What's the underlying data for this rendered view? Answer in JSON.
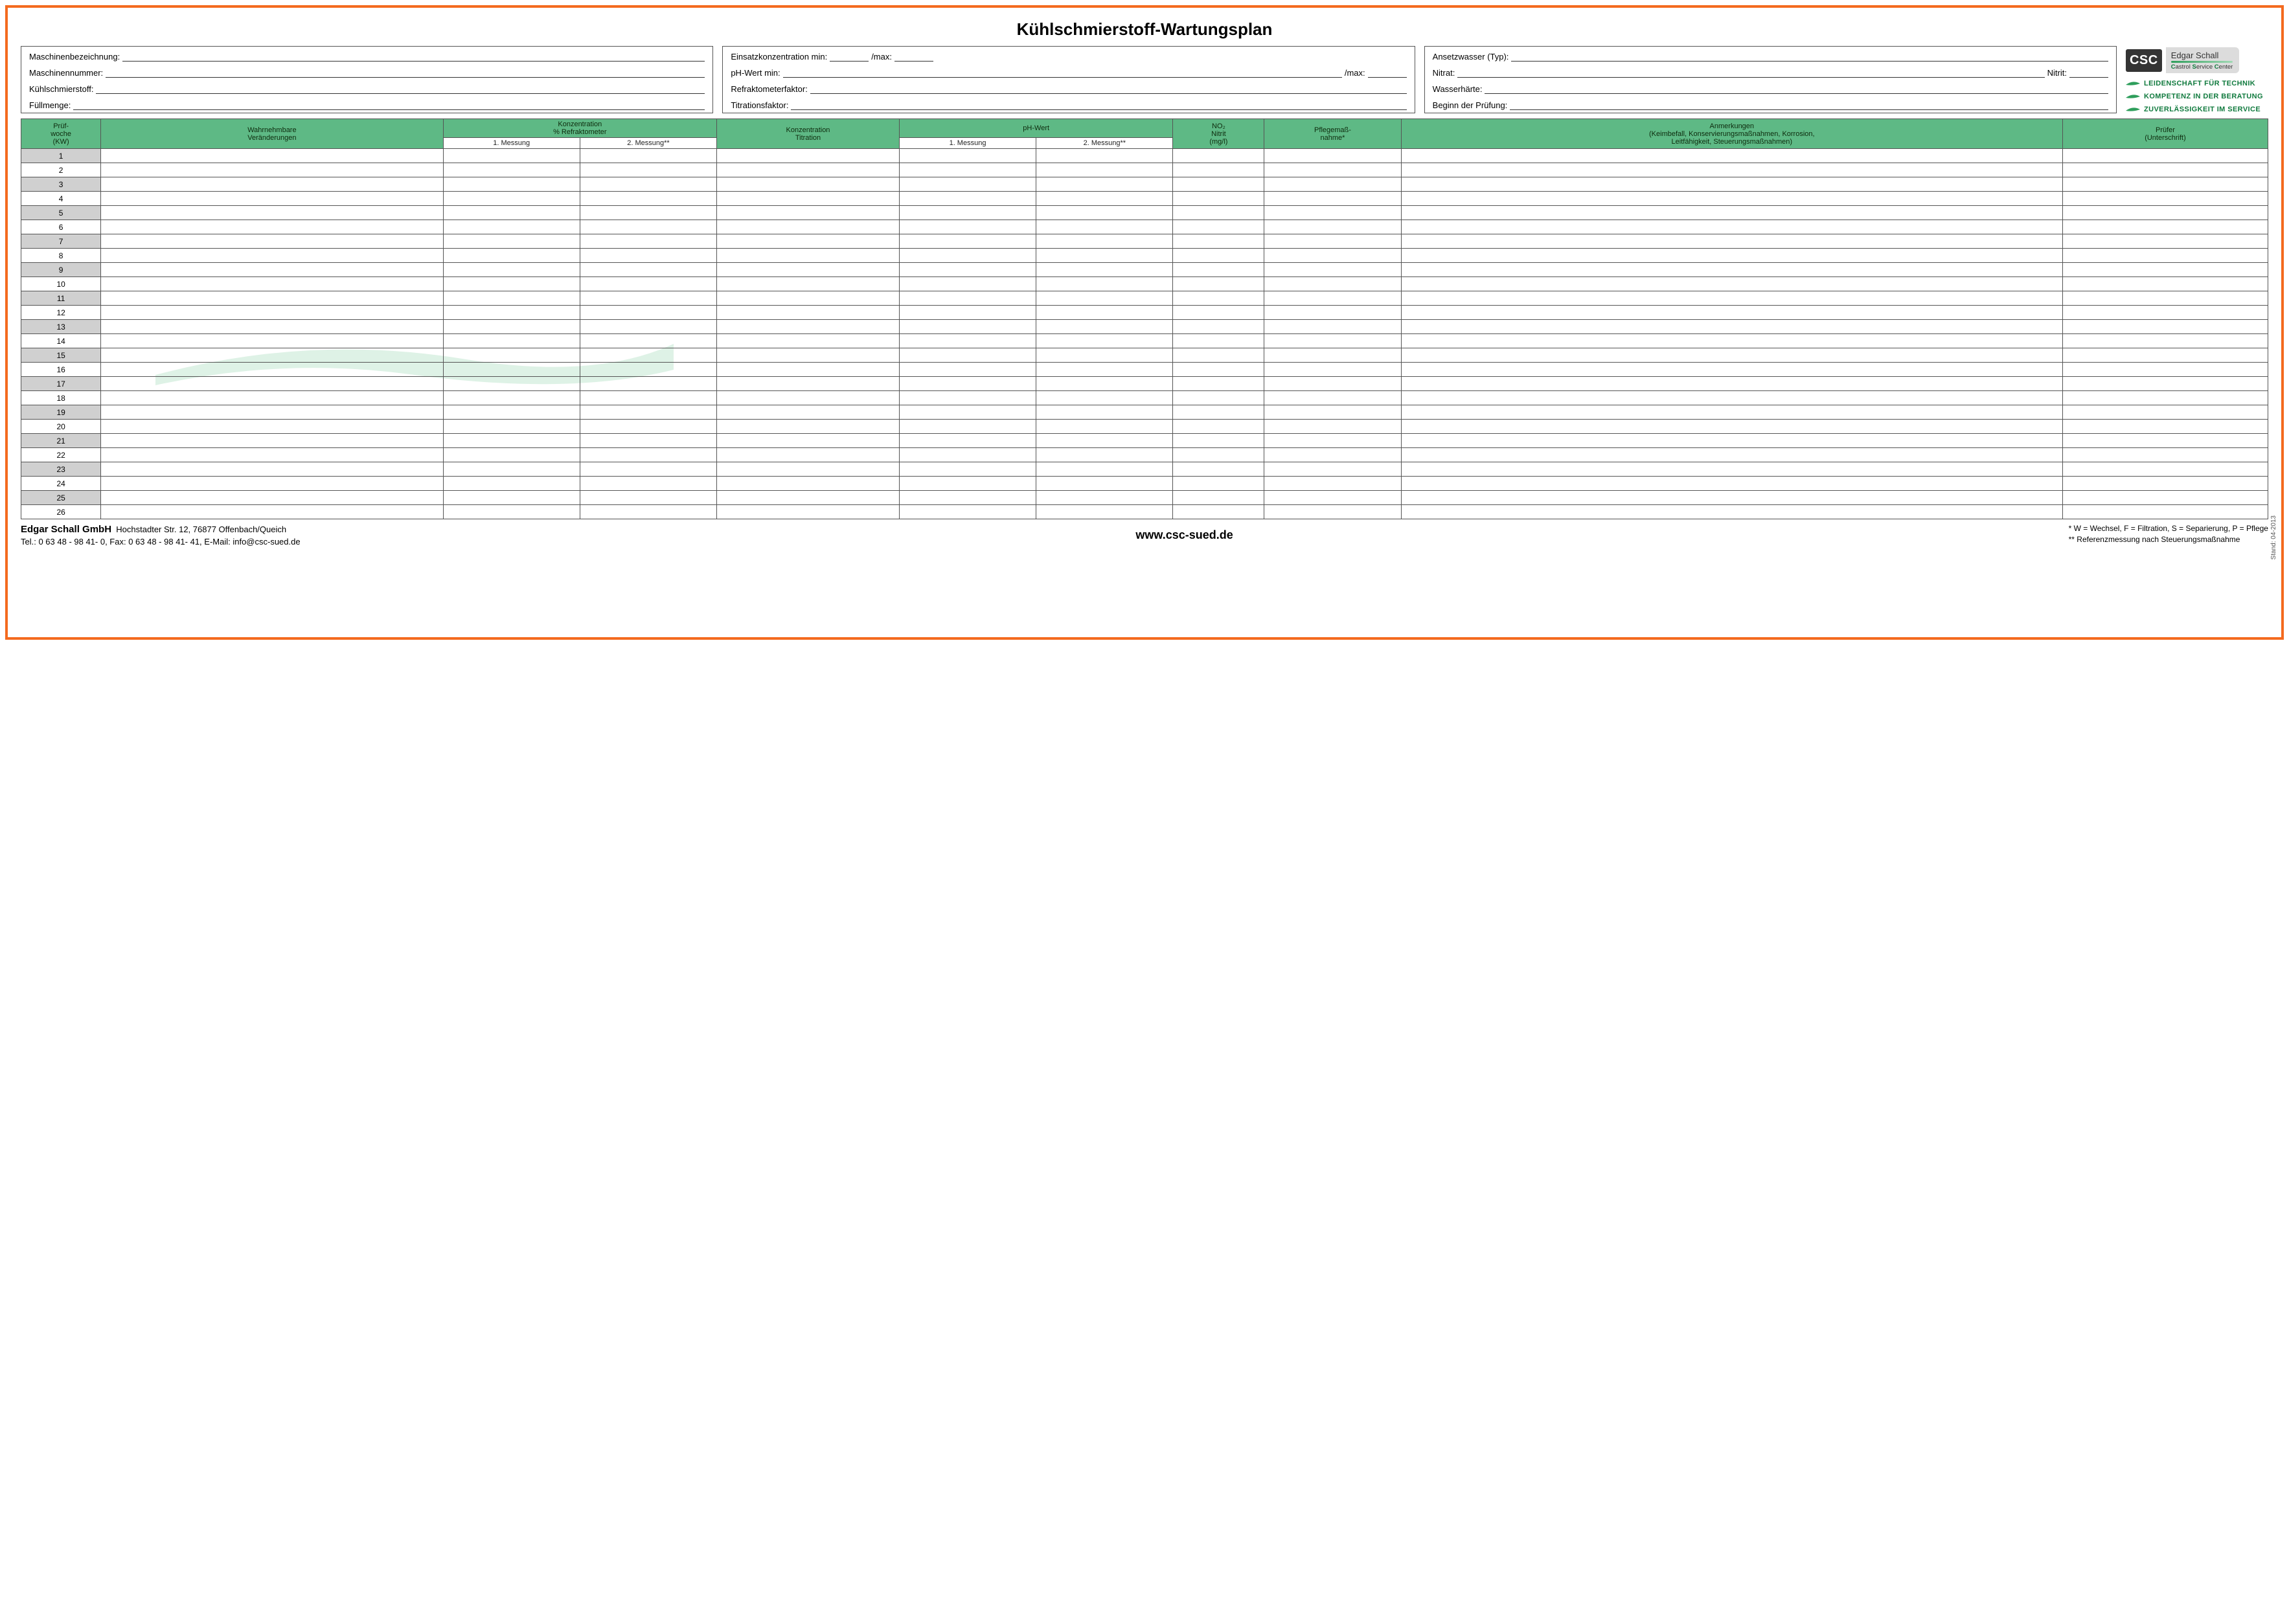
{
  "colors": {
    "frame_border": "#f46a1f",
    "header_bg": "#5eb985",
    "kw_odd_bg": "#d0d0d0",
    "brand_green": "#107a3e",
    "csc_badge_bg": "#343434",
    "grid_border": "#555555"
  },
  "title": "Kühlschmierstoff-Wartungsplan",
  "info": {
    "col1": {
      "maschinenbezeichnung_label": "Maschinenbezeichnung:",
      "maschinennummer_label": "Maschinennummer:",
      "kuehlschmierstoff_label": "Kühlschmierstoff:",
      "fuellmenge_label": "Füllmenge:"
    },
    "col2": {
      "einsatzkonzentration_label": "Einsatzkonzentration min:",
      "max_label": "/max:",
      "ph_wert_min_label": "pH-Wert min:",
      "ph_max_label": "/max:",
      "refraktometerfaktor_label": "Refraktometerfaktor:",
      "titrationsfaktor_label": "Titrationsfaktor:"
    },
    "col3": {
      "ansetzwasser_label": "Ansetzwasser (Typ):",
      "nitrat_label": "Nitrat:",
      "nitrit_label": "Nitrit:",
      "wasserhaerte_label": "Wasserhärte:",
      "beginn_label": "Beginn der Prüfung:"
    }
  },
  "logo": {
    "badge": "CSC",
    "name": "Edgar Schall",
    "sub_pre_c": "C",
    "sub_pre_s": "S",
    "sub_pre_c2": "C",
    "sub_castrol": "astrol ",
    "sub_service": "ervice ",
    "sub_center": "enter",
    "tag1": "LEIDENSCHAFT FÜR TECHNIK",
    "tag2": "KOMPETENZ IN DER BERATUNG",
    "tag3": "ZUVERLÄSSIGKEIT IM SERVICE"
  },
  "table": {
    "type": "form-grid",
    "num_rows": 26,
    "columns": [
      {
        "key": "kw",
        "label": "Prüf-\nwoche\n(KW)",
        "width": "3.5%"
      },
      {
        "key": "change",
        "label": "Wahrnehmbare\nVeränderungen",
        "width": "15%"
      },
      {
        "key": "konz_r1",
        "label": "Konzentration\n% Refraktometer",
        "width": "6%",
        "sublabel": "1. Messung"
      },
      {
        "key": "konz_r2",
        "label": "",
        "width": "6%",
        "sublabel": "2. Messung**"
      },
      {
        "key": "konz_titr",
        "label": "Konzentration\nTitration",
        "width": "8%"
      },
      {
        "key": "ph1",
        "label": "pH-Wert",
        "width": "6%",
        "sublabel": "1. Messung"
      },
      {
        "key": "ph2",
        "label": "",
        "width": "6%",
        "sublabel": "2. Messung**"
      },
      {
        "key": "no2",
        "label": "NO₂\nNitrit\n(mg/l)",
        "width": "4%"
      },
      {
        "key": "pflege",
        "label": "Pflegemaß-\nnahme*",
        "width": "6%"
      },
      {
        "key": "anmerkung",
        "label": "Anmerkungen\n(Keimbefall, Konservierungsmaßnahmen, Korrosion,\nLeitfähigkeit, Steuerungsmaßnahmen)",
        "width": "29%"
      },
      {
        "key": "pruefer",
        "label": "Prüfer\n(Unterschrift)",
        "width": "9%"
      }
    ]
  },
  "footer": {
    "company": "Edgar Schall GmbH",
    "address": "Hochstadter Str. 12, 76877 Offenbach/Queich",
    "contact": "Tel.: 0 63 48 - 98 41- 0, Fax: 0 63 48 - 98 41- 41, E-Mail: info@csc-sued.de",
    "url": "www.csc-sued.de",
    "note1": "* W = Wechsel, F = Filtration, S = Separierung, P = Pflege",
    "note2": "** Referenzmessung nach Steuerungsmaßnahme",
    "stand": "Stand: 04-2013"
  }
}
